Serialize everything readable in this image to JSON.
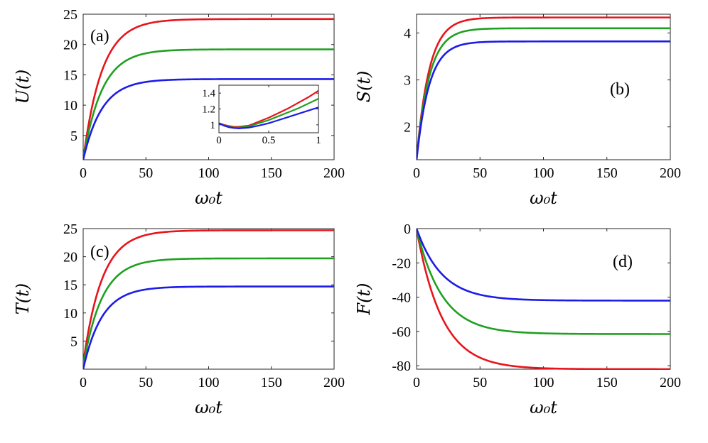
{
  "chart_data": [
    {
      "type": "line",
      "panel_label": "(a)",
      "xlabel": "ω₀t",
      "ylabel": "U(t)",
      "xlim": [
        0,
        200
      ],
      "ylim": [
        1,
        25
      ],
      "xticks": [
        0,
        50,
        100,
        150,
        200
      ],
      "yticks": [
        5,
        10,
        15,
        20,
        25
      ],
      "series": [
        {
          "name": "red",
          "color": "#e8141c",
          "y0": 1.0,
          "yinf": 24.2,
          "tau": 15
        },
        {
          "name": "green",
          "color": "#1fa01f",
          "y0": 1.0,
          "yinf": 19.2,
          "tau": 15
        },
        {
          "name": "blue",
          "color": "#1c1ce8",
          "y0": 1.0,
          "yinf": 14.3,
          "tau": 15
        }
      ],
      "inset": {
        "type": "line",
        "xlim": [
          0,
          1
        ],
        "ylim": [
          0.9,
          1.5
        ],
        "xticks": [
          0,
          0.5,
          1
        ],
        "yticks": [
          1,
          1.2,
          1.4
        ],
        "xtick_labels": [
          "0",
          "0.5",
          "1"
        ],
        "ytick_labels": [
          "1",
          "1.2",
          "1.4"
        ],
        "series": [
          {
            "name": "red",
            "color": "#e8141c",
            "x": [
              0,
              0.05,
              0.1,
              0.15,
              0.2,
              0.3,
              0.4,
              0.5,
              0.6,
              0.7,
              0.8,
              0.9,
              1.0
            ],
            "y": [
              1.02,
              1.0,
              0.985,
              0.975,
              0.975,
              0.99,
              1.04,
              1.09,
              1.15,
              1.21,
              1.28,
              1.35,
              1.43
            ]
          },
          {
            "name": "green",
            "color": "#1fa01f",
            "x": [
              0,
              0.05,
              0.1,
              0.15,
              0.2,
              0.3,
              0.4,
              0.5,
              0.6,
              0.7,
              0.8,
              0.9,
              1.0
            ],
            "y": [
              1.02,
              0.995,
              0.975,
              0.965,
              0.965,
              0.98,
              1.02,
              1.06,
              1.11,
              1.16,
              1.21,
              1.27,
              1.33
            ]
          },
          {
            "name": "blue",
            "color": "#1c1ce8",
            "x": [
              0,
              0.05,
              0.1,
              0.15,
              0.2,
              0.3,
              0.4,
              0.5,
              0.6,
              0.7,
              0.8,
              0.9,
              1.0
            ],
            "y": [
              1.02,
              0.99,
              0.97,
              0.96,
              0.955,
              0.965,
              0.99,
              1.02,
              1.06,
              1.1,
              1.14,
              1.18,
              1.22
            ]
          }
        ]
      }
    },
    {
      "type": "line",
      "panel_label": "(b)",
      "xlabel": "ω₀t",
      "ylabel": "S(t)",
      "xlim": [
        0,
        200
      ],
      "ylim": [
        1.3,
        4.4
      ],
      "xticks": [
        0,
        50,
        100,
        150,
        200
      ],
      "yticks": [
        2,
        3,
        4
      ],
      "series": [
        {
          "name": "red",
          "color": "#e8141c",
          "y0": 1.3,
          "yinf": 4.33,
          "tau": 10
        },
        {
          "name": "green",
          "color": "#1fa01f",
          "y0": 1.3,
          "yinf": 4.1,
          "tau": 10
        },
        {
          "name": "blue",
          "color": "#1c1ce8",
          "y0": 1.3,
          "yinf": 3.82,
          "tau": 10
        }
      ]
    },
    {
      "type": "line",
      "panel_label": "(c)",
      "xlabel": "ω₀t",
      "ylabel": "T(t)",
      "xlim": [
        0,
        200
      ],
      "ylim": [
        0,
        25
      ],
      "xticks": [
        0,
        50,
        100,
        150,
        200
      ],
      "yticks": [
        5,
        10,
        15,
        20,
        25
      ],
      "series": [
        {
          "name": "red",
          "color": "#e8141c",
          "y0": 1.0,
          "yinf": 24.7,
          "tau": 15
        },
        {
          "name": "green",
          "color": "#1fa01f",
          "y0": 0.5,
          "yinf": 19.7,
          "tau": 15
        },
        {
          "name": "blue",
          "color": "#1c1ce8",
          "y0": 0.0,
          "yinf": 14.7,
          "tau": 15
        }
      ]
    },
    {
      "type": "line",
      "panel_label": "(d)",
      "xlabel": "ω₀t",
      "ylabel": "F(t)",
      "xlim": [
        0,
        200
      ],
      "ylim": [
        -82,
        0
      ],
      "xticks": [
        0,
        50,
        100,
        150,
        200
      ],
      "yticks": [
        -80,
        -60,
        -40,
        -20,
        0
      ],
      "series": [
        {
          "name": "red",
          "color": "#e8141c",
          "y0": 0,
          "yinf": -82,
          "tau": 20
        },
        {
          "name": "green",
          "color": "#1fa01f",
          "y0": 0,
          "yinf": -61.5,
          "tau": 20
        },
        {
          "name": "blue",
          "color": "#1c1ce8",
          "y0": 0,
          "yinf": -42,
          "tau": 20
        }
      ]
    }
  ]
}
